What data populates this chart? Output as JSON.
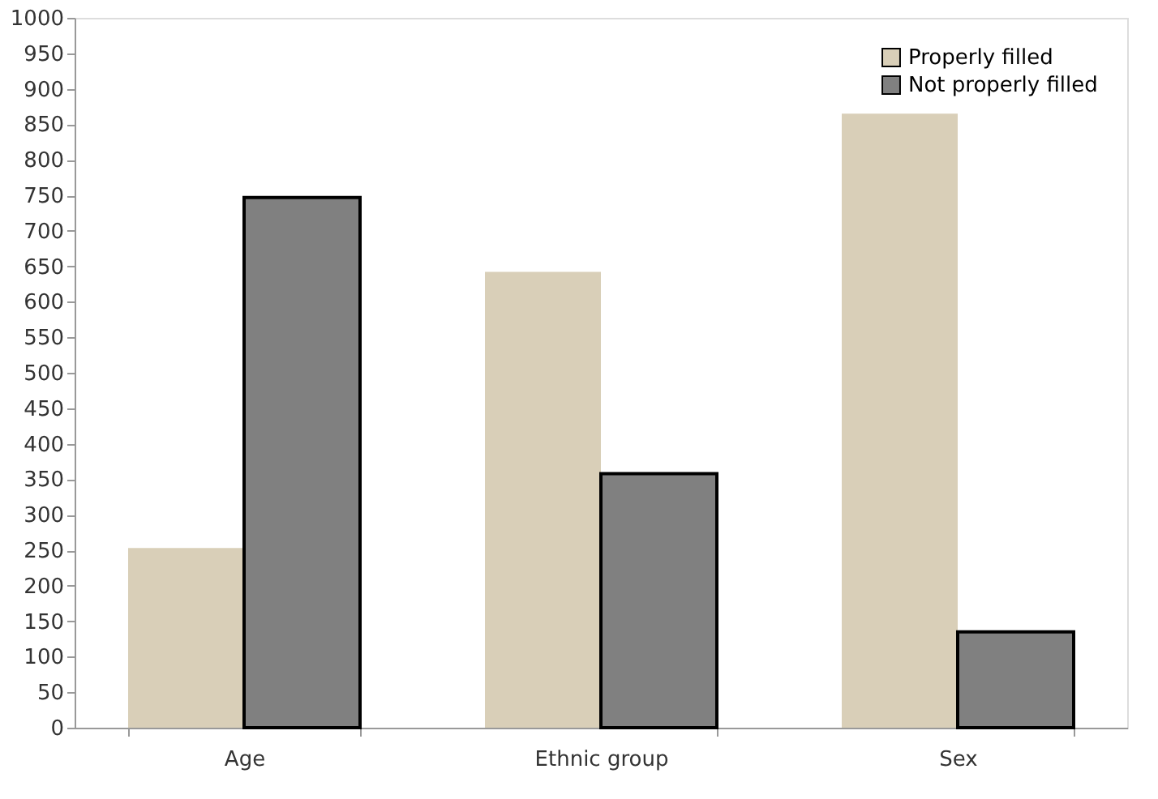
{
  "chart_data": {
    "type": "bar",
    "categories": [
      "Age",
      "Ethnic group",
      "Sex"
    ],
    "series": [
      {
        "name": "Properly filled",
        "color": "#d9cfb8",
        "values": [
          253,
          642,
          865
        ]
      },
      {
        "name": "Not properly filled",
        "color": "#808080",
        "values": [
          747,
          358,
          135
        ]
      }
    ],
    "ylim": [
      0,
      1000
    ],
    "yticks": [
      0,
      50,
      100,
      150,
      200,
      250,
      300,
      350,
      400,
      450,
      500,
      550,
      600,
      650,
      700,
      750,
      800,
      850,
      900,
      950,
      1000
    ],
    "grid": false,
    "legend": "top right"
  }
}
